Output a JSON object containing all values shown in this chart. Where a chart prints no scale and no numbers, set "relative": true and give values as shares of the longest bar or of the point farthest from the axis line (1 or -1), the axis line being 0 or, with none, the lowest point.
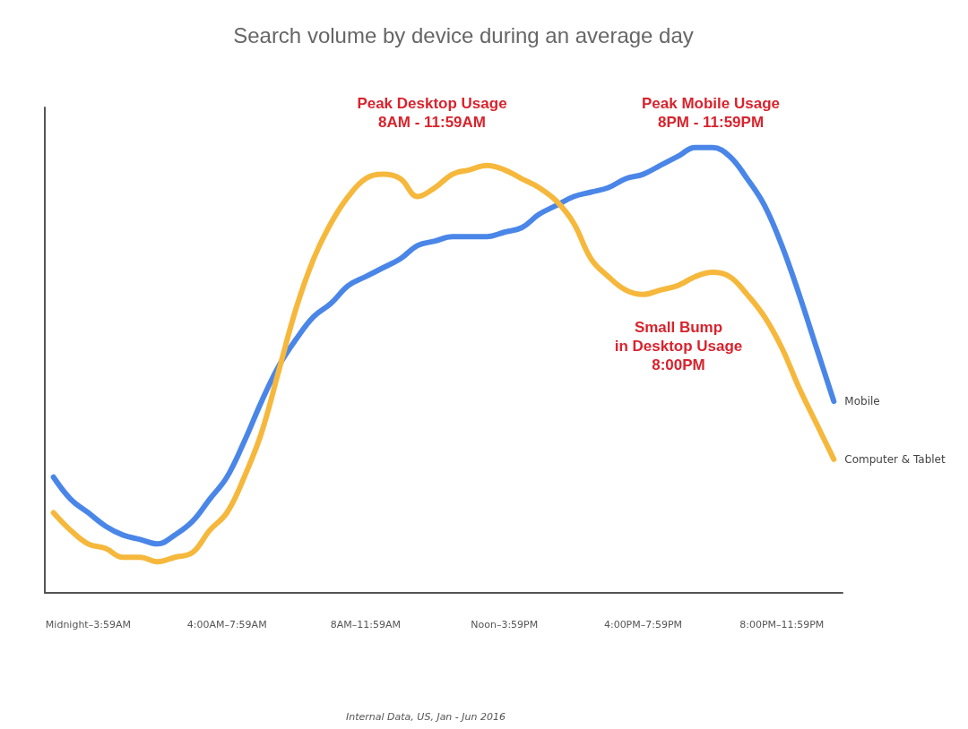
{
  "chart_data": {
    "type": "line",
    "title": "Search volume by device during an average day",
    "relative": true,
    "categories": [
      null,
      null,
      "Midnight–3:59AM",
      null,
      null,
      null,
      null,
      null,
      null,
      null,
      "4:00AM–7:59AM",
      null,
      null,
      null,
      null,
      null,
      null,
      null,
      "8AM–11:59AM",
      null,
      null,
      null,
      null,
      null,
      null,
      null,
      "Noon–3:59PM",
      null,
      null,
      null,
      null,
      null,
      null,
      null,
      "4:00PM–7:59PM",
      null,
      null,
      null,
      null,
      null,
      null,
      null,
      "8:00PM–11:59PM",
      null,
      null,
      null
    ],
    "series": [
      {
        "name": "Mobile",
        "color": "#4a86e8",
        "values": [
          0.26,
          0.21,
          0.18,
          0.15,
          0.13,
          0.12,
          0.11,
          0.13,
          0.16,
          0.21,
          0.26,
          0.34,
          0.43,
          0.51,
          0.57,
          0.62,
          0.65,
          0.69,
          0.71,
          0.73,
          0.75,
          0.78,
          0.79,
          0.8,
          0.8,
          0.8,
          0.81,
          0.82,
          0.85,
          0.87,
          0.89,
          0.9,
          0.91,
          0.93,
          0.94,
          0.96,
          0.98,
          1.0,
          1.0,
          0.98,
          0.93,
          0.87,
          0.78,
          0.67,
          0.55,
          0.43
        ]
      },
      {
        "name": "Computer & Tablet",
        "color": "#f6b83c",
        "values": [
          0.18,
          0.14,
          0.11,
          0.1,
          0.08,
          0.08,
          0.07,
          0.08,
          0.09,
          0.14,
          0.18,
          0.26,
          0.36,
          0.5,
          0.64,
          0.75,
          0.83,
          0.89,
          0.93,
          0.94,
          0.93,
          0.89,
          0.91,
          0.94,
          0.95,
          0.96,
          0.95,
          0.93,
          0.91,
          0.88,
          0.83,
          0.75,
          0.71,
          0.68,
          0.67,
          0.68,
          0.69,
          0.71,
          0.72,
          0.71,
          0.67,
          0.62,
          0.55,
          0.46,
          0.38,
          0.3
        ]
      }
    ],
    "annotations": [
      "Peak Desktop Usage\n8AM - 11:59AM",
      "Peak Mobile Usage\n8PM - 11:59PM",
      "Small Bump\nin Desktop Usage\n8:00PM",
      "Internal Data, US, Jan - Jun 2016"
    ],
    "grid": false,
    "legend": false,
    "marker": "none",
    "line_style": "solid"
  }
}
